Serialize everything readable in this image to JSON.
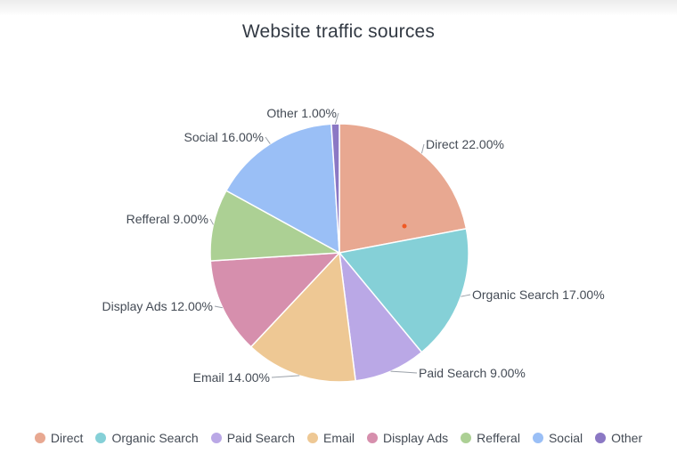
{
  "chart_data": {
    "type": "pie",
    "title": "Website traffic sources",
    "slices": [
      {
        "name": "Direct",
        "value": 22.0,
        "label": "Direct 22.00%",
        "color": "#e8a891"
      },
      {
        "name": "Organic Search",
        "value": 17.0,
        "label": "Organic Search 17.00%",
        "color": "#85d0d7"
      },
      {
        "name": "Paid Search",
        "value": 9.0,
        "label": "Paid Search 9.00%",
        "color": "#baa8e6"
      },
      {
        "name": "Email",
        "value": 14.0,
        "label": "Email 14.00%",
        "color": "#eec894"
      },
      {
        "name": "Display Ads",
        "value": 12.0,
        "label": "Display Ads 12.00%",
        "color": "#d68fad"
      },
      {
        "name": "Refferal",
        "value": 9.0,
        "label": "Refferal 9.00%",
        "color": "#acd094"
      },
      {
        "name": "Social",
        "value": 16.0,
        "label": "Social 16.00%",
        "color": "#9abff6"
      },
      {
        "name": "Other",
        "value": 1.0,
        "label": "Other 1.00%",
        "color": "#8b78c4"
      }
    ],
    "legend_position": "bottom"
  }
}
